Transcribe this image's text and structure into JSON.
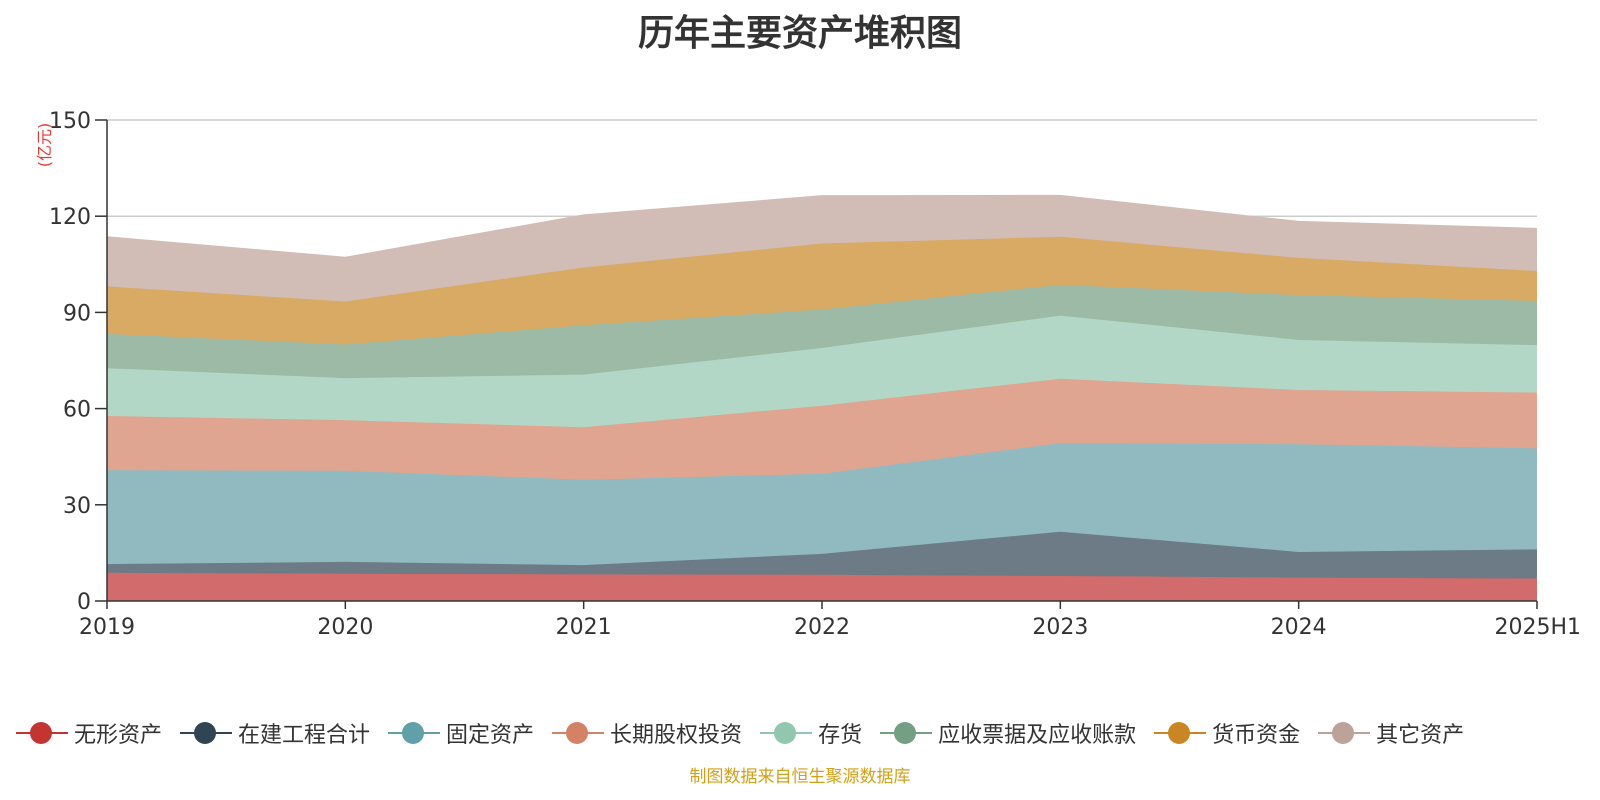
{
  "title": "历年主要资产堆积图",
  "footer": "制图数据来自恒生聚源数据库",
  "chart_data": {
    "type": "area",
    "stacked": true,
    "title": "历年主要资产堆积图",
    "ylabel": "(亿元)",
    "xlabel": "",
    "ylim": [
      0,
      150
    ],
    "yticks": [
      0,
      30,
      60,
      90,
      120,
      150
    ],
    "grid": true,
    "legend_position": "bottom",
    "categories": [
      "2019",
      "2020",
      "2021",
      "2022",
      "2023",
      "2024",
      "2025H1"
    ],
    "series": [
      {
        "name": "无形资产",
        "color": "#c23531",
        "fill": "#d26b6b",
        "values": [
          8.8,
          8.5,
          8.3,
          8.2,
          7.8,
          7.3,
          7.0
        ]
      },
      {
        "name": "在建工程合计",
        "color": "#2f4554",
        "fill": "#6c7b86",
        "values": [
          2.7,
          3.7,
          2.9,
          6.5,
          13.8,
          8.0,
          9.1
        ]
      },
      {
        "name": "固定资产",
        "color": "#61a0a8",
        "fill": "#90bac0",
        "values": [
          29.3,
          28.4,
          26.6,
          25.0,
          27.6,
          33.6,
          31.5
        ]
      },
      {
        "name": "长期股权投资",
        "color": "#d48265",
        "fill": "#e0a590",
        "values": [
          16.9,
          15.8,
          16.4,
          21.2,
          20.1,
          16.9,
          17.4
        ]
      },
      {
        "name": "存货",
        "color": "#91c7ae",
        "fill": "#b2d7c6",
        "values": [
          14.9,
          13.1,
          16.4,
          18.0,
          19.7,
          15.6,
          14.8
        ]
      },
      {
        "name": "应收票据及应收账款",
        "color": "#749f83",
        "fill": "#9dbaa6",
        "values": [
          10.7,
          10.5,
          15.4,
          12.0,
          9.6,
          14.0,
          13.8
        ]
      },
      {
        "name": "货币资金",
        "color": "#ca8622",
        "fill": "#d9aa63",
        "values": [
          14.8,
          13.4,
          18.0,
          20.6,
          15.0,
          11.6,
          9.3
        ]
      },
      {
        "name": "其它资产",
        "color": "#bda29a",
        "fill": "#d1bcb6",
        "values": [
          15.5,
          13.8,
          16.4,
          14.9,
          12.9,
          11.4,
          13.3
        ]
      }
    ]
  }
}
